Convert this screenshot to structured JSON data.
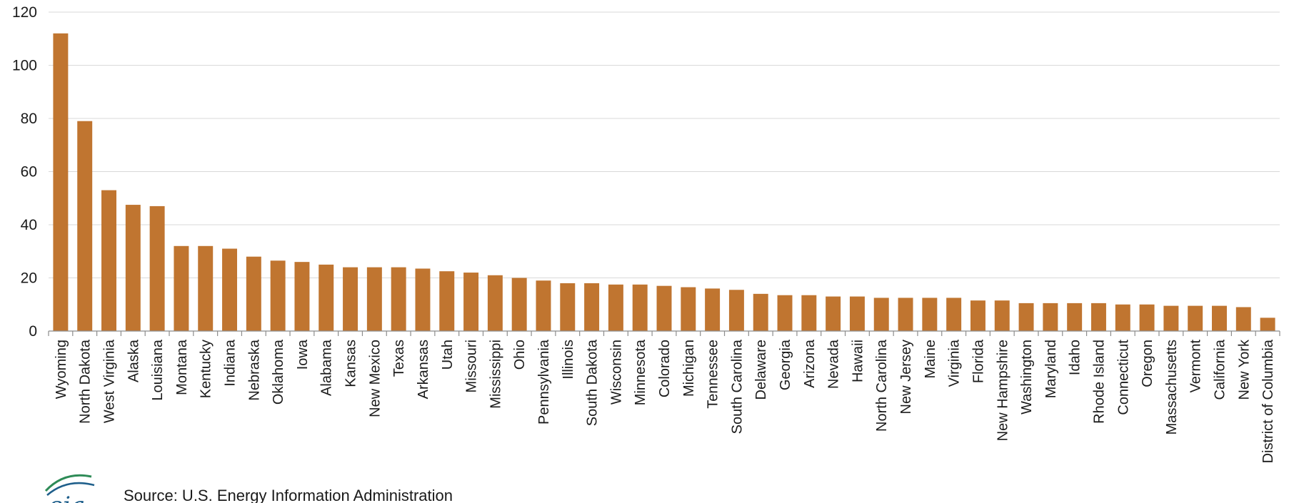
{
  "chart_data": {
    "type": "bar",
    "title": "",
    "xlabel": "",
    "ylabel": "",
    "ylim": [
      0,
      120
    ],
    "yticks": [
      0,
      20,
      40,
      60,
      80,
      100,
      120
    ],
    "grid": true,
    "legend": "none",
    "bar_color": "#c07530",
    "categories": [
      "Wyoming",
      "North Dakota",
      "West Virginia",
      "Alaska",
      "Louisiana",
      "Montana",
      "Kentucky",
      "Indiana",
      "Nebraska",
      "Oklahoma",
      "Iowa",
      "Alabama",
      "Kansas",
      "New Mexico",
      "Texas",
      "Arkansas",
      "Utah",
      "Missouri",
      "Mississippi",
      "Ohio",
      "Pennsylvania",
      "Illinois",
      "South Dakota",
      "Wisconsin",
      "Minnesota",
      "Colorado",
      "Michigan",
      "Tennessee",
      "South Carolina",
      "Delaware",
      "Georgia",
      "Arizona",
      "Nevada",
      "Hawaii",
      "North Carolina",
      "New Jersey",
      "Maine",
      "Virginia",
      "Florida",
      "New Hampshire",
      "Washington",
      "Maryland",
      "Idaho",
      "Rhode Island",
      "Connecticut",
      "Oregon",
      "Massachusetts",
      "Vermont",
      "California",
      "New York",
      "District of Columbia"
    ],
    "values": [
      112,
      79,
      53,
      47.5,
      47,
      32,
      32,
      31,
      28,
      26.5,
      26,
      25,
      24,
      24,
      24,
      23.5,
      22.5,
      22,
      21,
      20,
      19,
      18,
      18,
      17.5,
      17.5,
      17,
      16.5,
      16,
      15.5,
      14,
      13.5,
      13.5,
      13,
      13,
      12.5,
      12.5,
      12.5,
      12.5,
      11.5,
      11.5,
      10.5,
      10.5,
      10.5,
      10.5,
      10,
      10,
      9.5,
      9.5,
      9.5,
      9,
      5
    ]
  },
  "footer": {
    "source": "Source:  U.S. Energy Information Administration",
    "logo_text": "eia"
  }
}
